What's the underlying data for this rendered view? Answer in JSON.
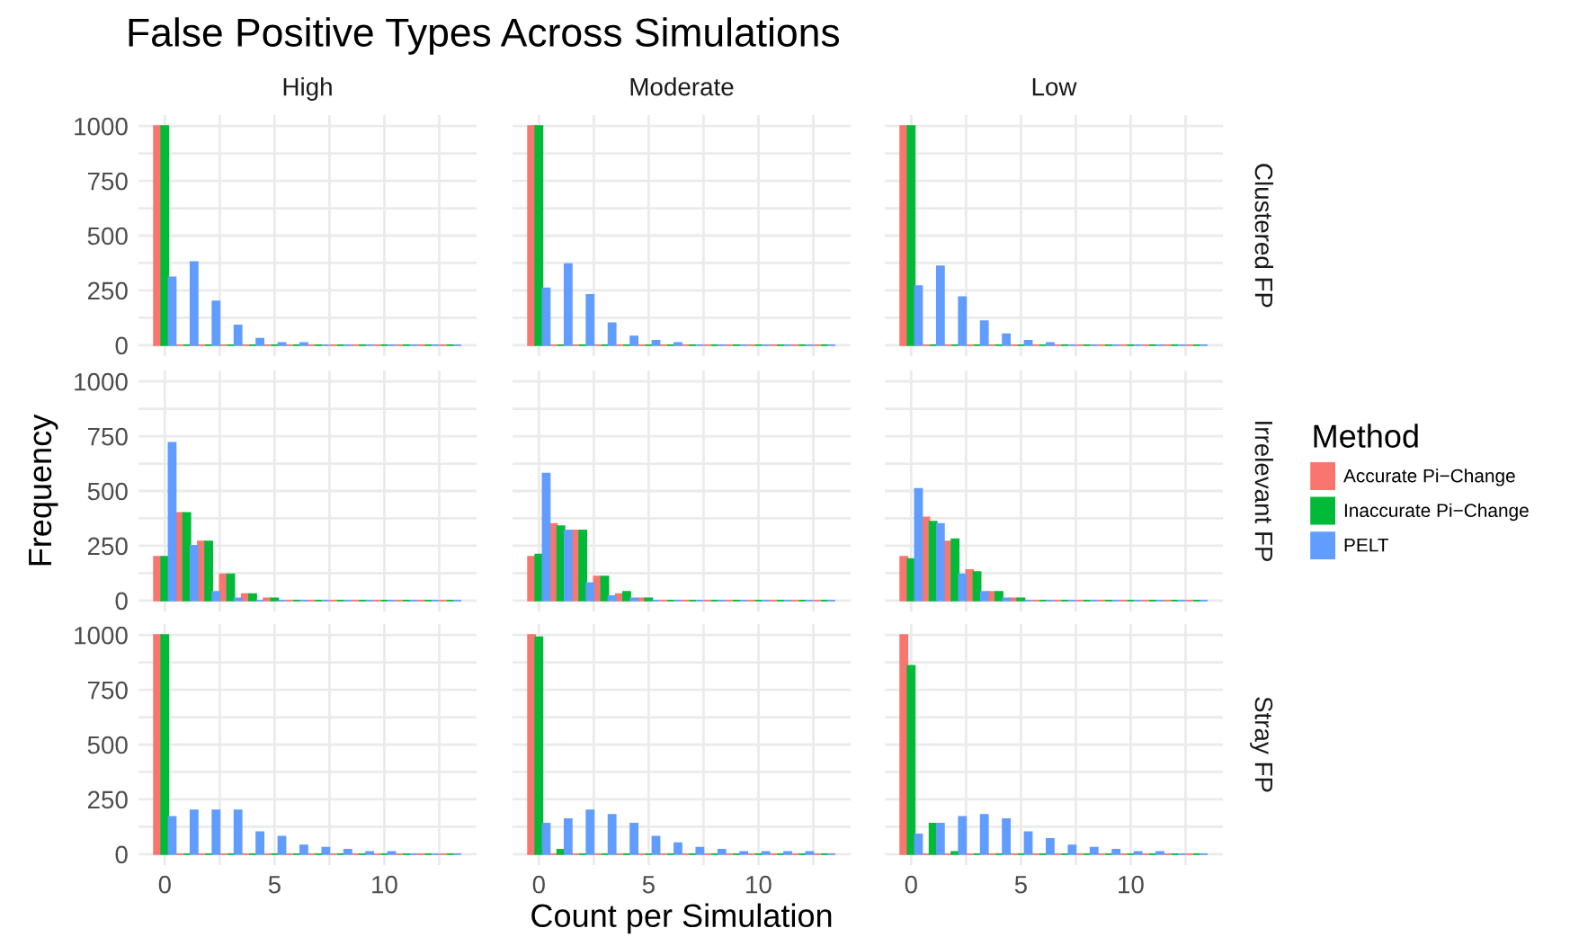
{
  "chart_data": [
    {
      "type": "bar",
      "title": "False Positive Types Across Simulations",
      "subtitle": "High",
      "tick_labels": "y",
      "grid": true,
      "legend": false,
      "x": [
        0,
        1,
        2,
        3,
        4,
        5,
        6,
        7,
        8,
        9,
        10,
        11,
        12,
        13
      ],
      "xlim": [
        -1.2,
        14.2
      ],
      "ylim": [
        -50,
        1050
      ],
      "xticks": [
        0,
        {
          "value": 2.5,
          "label": null
        },
        5,
        {
          "value": 7.5,
          "label": null
        },
        10,
        {
          "value": 12.5,
          "label": null
        }
      ],
      "yticks": [
        0,
        {
          "value": 125,
          "label": null
        },
        250,
        {
          "value": 375,
          "label": null
        },
        500,
        {
          "value": 625,
          "label": null
        },
        750,
        {
          "value": 875,
          "label": null
        },
        1000
      ],
      "series": [
        {
          "color": "#f8766d",
          "values": [
            1000,
            0,
            0,
            0,
            0,
            0,
            0,
            0,
            0,
            0,
            0,
            0,
            0,
            0
          ]
        },
        {
          "color": "#00ba38",
          "values": [
            1000,
            0,
            0,
            0,
            0,
            0,
            0,
            0,
            0,
            0,
            0,
            0,
            0,
            0
          ]
        },
        {
          "color": "#619cff",
          "values": [
            310,
            380,
            200,
            90,
            30,
            10,
            10,
            0,
            0,
            0,
            0,
            0,
            0,
            0
          ]
        }
      ]
    },
    {
      "type": "bar",
      "subtitle": "Moderate",
      "tick_labels": false,
      "grid": true,
      "legend": false,
      "x": [
        0,
        1,
        2,
        3,
        4,
        5,
        6,
        7,
        8,
        9,
        10,
        11,
        12,
        13
      ],
      "xlim": [
        -1.2,
        14.2
      ],
      "ylim": [
        -50,
        1050
      ],
      "xticks": [
        0,
        {
          "value": 2.5,
          "label": null
        },
        5,
        {
          "value": 7.5,
          "label": null
        },
        10,
        {
          "value": 12.5,
          "label": null
        }
      ],
      "yticks": [
        0,
        {
          "value": 125,
          "label": null
        },
        250,
        {
          "value": 375,
          "label": null
        },
        500,
        {
          "value": 625,
          "label": null
        },
        750,
        {
          "value": 875,
          "label": null
        },
        1000
      ],
      "series": [
        {
          "color": "#f8766d",
          "values": [
            1000,
            0,
            0,
            0,
            0,
            0,
            0,
            0,
            0,
            0,
            0,
            0,
            0,
            0
          ]
        },
        {
          "color": "#00ba38",
          "values": [
            1000,
            0,
            0,
            0,
            0,
            0,
            0,
            0,
            0,
            0,
            0,
            0,
            0,
            0
          ]
        },
        {
          "color": "#619cff",
          "values": [
            260,
            370,
            230,
            100,
            40,
            20,
            10,
            0,
            0,
            0,
            0,
            0,
            0,
            0
          ]
        }
      ]
    },
    {
      "type": "bar",
      "subtitle": "Low",
      "annotations": [
        "Clustered FP"
      ],
      "tick_labels": false,
      "grid": true,
      "legend": false,
      "x": [
        0,
        1,
        2,
        3,
        4,
        5,
        6,
        7,
        8,
        9,
        10,
        11,
        12,
        13
      ],
      "xlim": [
        -1.2,
        14.2
      ],
      "ylim": [
        -50,
        1050
      ],
      "xticks": [
        0,
        {
          "value": 2.5,
          "label": null
        },
        5,
        {
          "value": 7.5,
          "label": null
        },
        10,
        {
          "value": 12.5,
          "label": null
        }
      ],
      "yticks": [
        0,
        {
          "value": 125,
          "label": null
        },
        250,
        {
          "value": 375,
          "label": null
        },
        500,
        {
          "value": 625,
          "label": null
        },
        750,
        {
          "value": 875,
          "label": null
        },
        1000
      ],
      "series": [
        {
          "color": "#f8766d",
          "values": [
            1000,
            0,
            0,
            0,
            0,
            0,
            0,
            0,
            0,
            0,
            0,
            0,
            0,
            0
          ]
        },
        {
          "color": "#00ba38",
          "values": [
            1000,
            0,
            0,
            0,
            0,
            0,
            0,
            0,
            0,
            0,
            0,
            0,
            0,
            0
          ]
        },
        {
          "color": "#619cff",
          "values": [
            270,
            360,
            220,
            110,
            50,
            20,
            10,
            0,
            0,
            0,
            0,
            0,
            0,
            0
          ]
        }
      ]
    },
    {
      "type": "bar",
      "ylabel": "Frequency",
      "tick_labels": "y",
      "grid": true,
      "legend": false,
      "x": [
        0,
        1,
        2,
        3,
        4,
        5,
        6,
        7,
        8,
        9,
        10,
        11,
        12,
        13
      ],
      "xlim": [
        -1.2,
        14.2
      ],
      "ylim": [
        -50,
        1050
      ],
      "xticks": [
        0,
        {
          "value": 2.5,
          "label": null
        },
        5,
        {
          "value": 7.5,
          "label": null
        },
        10,
        {
          "value": 12.5,
          "label": null
        }
      ],
      "yticks": [
        0,
        {
          "value": 125,
          "label": null
        },
        250,
        {
          "value": 375,
          "label": null
        },
        500,
        {
          "value": 625,
          "label": null
        },
        750,
        {
          "value": 875,
          "label": null
        },
        1000
      ],
      "series": [
        {
          "color": "#f8766d",
          "values": [
            200,
            400,
            270,
            120,
            30,
            10,
            0,
            0,
            0,
            0,
            0,
            0,
            0,
            0
          ]
        },
        {
          "color": "#00ba38",
          "values": [
            200,
            400,
            270,
            120,
            30,
            10,
            0,
            0,
            0,
            0,
            0,
            0,
            0,
            0
          ]
        },
        {
          "color": "#619cff",
          "values": [
            720,
            250,
            40,
            10,
            0,
            0,
            0,
            0,
            0,
            0,
            0,
            0,
            0,
            0
          ]
        }
      ]
    },
    {
      "type": "bar",
      "tick_labels": false,
      "grid": true,
      "legend": false,
      "x": [
        0,
        1,
        2,
        3,
        4,
        5,
        6,
        7,
        8,
        9,
        10,
        11,
        12,
        13
      ],
      "xlim": [
        -1.2,
        14.2
      ],
      "ylim": [
        -50,
        1050
      ],
      "xticks": [
        0,
        {
          "value": 2.5,
          "label": null
        },
        5,
        {
          "value": 7.5,
          "label": null
        },
        10,
        {
          "value": 12.5,
          "label": null
        }
      ],
      "yticks": [
        0,
        {
          "value": 125,
          "label": null
        },
        250,
        {
          "value": 375,
          "label": null
        },
        500,
        {
          "value": 625,
          "label": null
        },
        750,
        {
          "value": 875,
          "label": null
        },
        1000
      ],
      "series": [
        {
          "color": "#f8766d",
          "values": [
            200,
            350,
            320,
            110,
            30,
            10,
            0,
            0,
            0,
            0,
            0,
            0,
            0,
            0
          ]
        },
        {
          "color": "#00ba38",
          "values": [
            210,
            340,
            320,
            110,
            40,
            10,
            0,
            0,
            0,
            0,
            0,
            0,
            0,
            0
          ]
        },
        {
          "color": "#619cff",
          "values": [
            580,
            320,
            80,
            20,
            10,
            0,
            0,
            0,
            0,
            0,
            0,
            0,
            0,
            0
          ]
        }
      ]
    },
    {
      "type": "bar",
      "annotations": [
        "Irrelevant FP"
      ],
      "tick_labels": false,
      "grid": true,
      "legend": "right",
      "legend_title": "Method",
      "x": [
        0,
        1,
        2,
        3,
        4,
        5,
        6,
        7,
        8,
        9,
        10,
        11,
        12,
        13
      ],
      "xlim": [
        -1.2,
        14.2
      ],
      "ylim": [
        -50,
        1050
      ],
      "xticks": [
        0,
        {
          "value": 2.5,
          "label": null
        },
        5,
        {
          "value": 7.5,
          "label": null
        },
        10,
        {
          "value": 12.5,
          "label": null
        }
      ],
      "yticks": [
        0,
        {
          "value": 125,
          "label": null
        },
        250,
        {
          "value": 375,
          "label": null
        },
        500,
        {
          "value": 625,
          "label": null
        },
        750,
        {
          "value": 875,
          "label": null
        },
        1000
      ],
      "series": [
        {
          "name": "Accurate Pi−Change",
          "color": "#f8766d",
          "values": [
            200,
            380,
            270,
            140,
            40,
            10,
            0,
            0,
            0,
            0,
            0,
            0,
            0,
            0
          ]
        },
        {
          "name": "Inaccurate Pi−Change",
          "color": "#00ba38",
          "values": [
            190,
            360,
            280,
            130,
            40,
            10,
            0,
            0,
            0,
            0,
            0,
            0,
            0,
            0
          ]
        },
        {
          "name": "PELT",
          "color": "#619cff",
          "values": [
            510,
            350,
            120,
            40,
            10,
            0,
            0,
            0,
            0,
            0,
            0,
            0,
            0,
            0
          ]
        }
      ]
    },
    {
      "type": "bar",
      "grid": true,
      "legend": false,
      "x": [
        0,
        1,
        2,
        3,
        4,
        5,
        6,
        7,
        8,
        9,
        10,
        11,
        12,
        13
      ],
      "xlim": [
        -1.2,
        14.2
      ],
      "ylim": [
        -50,
        1050
      ],
      "xticks": [
        0,
        {
          "value": 2.5,
          "label": null
        },
        5,
        {
          "value": 7.5,
          "label": null
        },
        10,
        {
          "value": 12.5,
          "label": null
        }
      ],
      "yticks": [
        0,
        {
          "value": 125,
          "label": null
        },
        250,
        {
          "value": 375,
          "label": null
        },
        500,
        {
          "value": 625,
          "label": null
        },
        750,
        {
          "value": 875,
          "label": null
        },
        1000
      ],
      "series": [
        {
          "color": "#f8766d",
          "values": [
            1000,
            0,
            0,
            0,
            0,
            0,
            0,
            0,
            0,
            0,
            0,
            0,
            0,
            0
          ]
        },
        {
          "color": "#00ba38",
          "values": [
            1000,
            0,
            0,
            0,
            0,
            0,
            0,
            0,
            0,
            0,
            0,
            0,
            0,
            0
          ]
        },
        {
          "color": "#619cff",
          "values": [
            170,
            200,
            200,
            200,
            100,
            80,
            40,
            30,
            20,
            10,
            10,
            0,
            0,
            0
          ]
        }
      ]
    },
    {
      "type": "bar",
      "xlabel": "Count per Simulation",
      "tick_labels": "x",
      "grid": true,
      "legend": false,
      "x": [
        0,
        1,
        2,
        3,
        4,
        5,
        6,
        7,
        8,
        9,
        10,
        11,
        12,
        13
      ],
      "xlim": [
        -1.2,
        14.2
      ],
      "ylim": [
        -50,
        1050
      ],
      "xticks": [
        0,
        {
          "value": 2.5,
          "label": null
        },
        5,
        {
          "value": 7.5,
          "label": null
        },
        10,
        {
          "value": 12.5,
          "label": null
        }
      ],
      "yticks": [
        0,
        {
          "value": 125,
          "label": null
        },
        250,
        {
          "value": 375,
          "label": null
        },
        500,
        {
          "value": 625,
          "label": null
        },
        750,
        {
          "value": 875,
          "label": null
        },
        1000
      ],
      "series": [
        {
          "color": "#f8766d",
          "values": [
            1000,
            0,
            0,
            0,
            0,
            0,
            0,
            0,
            0,
            0,
            0,
            0,
            0,
            0
          ]
        },
        {
          "color": "#00ba38",
          "values": [
            990,
            20,
            0,
            0,
            0,
            0,
            0,
            0,
            0,
            0,
            0,
            0,
            0,
            0
          ]
        },
        {
          "color": "#619cff",
          "values": [
            140,
            160,
            200,
            180,
            140,
            80,
            50,
            30,
            20,
            10,
            10,
            10,
            10,
            0
          ]
        }
      ]
    },
    {
      "type": "bar",
      "annotations": [
        "Stray FP"
      ],
      "tick_labels": "x",
      "grid": true,
      "legend": false,
      "x": [
        0,
        1,
        2,
        3,
        4,
        5,
        6,
        7,
        8,
        9,
        10,
        11,
        12,
        13
      ],
      "xlim": [
        -1.2,
        14.2
      ],
      "ylim": [
        -50,
        1050
      ],
      "xticks": [
        0,
        {
          "value": 2.5,
          "label": null
        },
        5,
        {
          "value": 7.5,
          "label": null
        },
        10,
        {
          "value": 12.5,
          "label": null
        }
      ],
      "yticks": [
        0,
        {
          "value": 125,
          "label": null
        },
        250,
        {
          "value": 375,
          "label": null
        },
        500,
        {
          "value": 625,
          "label": null
        },
        750,
        {
          "value": 875,
          "label": null
        },
        1000
      ],
      "series": [
        {
          "color": "#f8766d",
          "values": [
            1000,
            0,
            0,
            0,
            0,
            0,
            0,
            0,
            0,
            0,
            0,
            0,
            0,
            0
          ]
        },
        {
          "color": "#00ba38",
          "values": [
            860,
            140,
            10,
            0,
            0,
            0,
            0,
            0,
            0,
            0,
            0,
            0,
            0,
            0
          ]
        },
        {
          "color": "#619cff",
          "values": [
            90,
            140,
            170,
            180,
            160,
            100,
            70,
            40,
            30,
            20,
            10,
            10,
            0,
            0
          ]
        }
      ]
    }
  ]
}
